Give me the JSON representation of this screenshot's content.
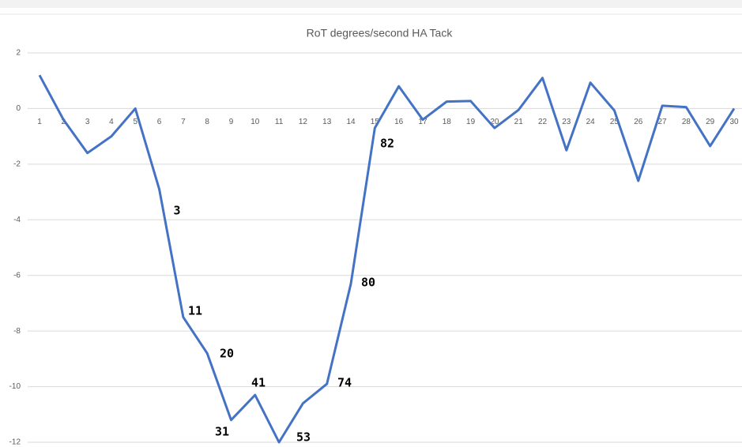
{
  "chart_data": {
    "type": "line",
    "title": "RoT degrees/second HA  Tack",
    "categories": [
      1,
      2,
      3,
      4,
      5,
      6,
      7,
      8,
      9,
      10,
      11,
      12,
      13,
      14,
      15,
      16,
      17,
      18,
      19,
      20,
      21,
      22,
      23,
      24,
      25,
      26,
      27,
      28,
      29,
      30
    ],
    "series": [
      {
        "name": "RoT",
        "color": "#4472c4",
        "values": [
          1.2,
          -0.4,
          -1.6,
          -1.0,
          0.0,
          -2.9,
          -7.5,
          -8.8,
          -11.2,
          -10.3,
          -12.0,
          -10.6,
          -9.9,
          -6.3,
          -0.7,
          0.8,
          -0.4,
          0.25,
          0.27,
          -0.7,
          -0.05,
          1.1,
          -1.5,
          0.93,
          -0.07,
          -2.6,
          0.1,
          0.05,
          -1.35,
          0.0
        ]
      }
    ],
    "ylim": [
      -12,
      2
    ],
    "yticks": [
      -12,
      -10,
      -8,
      -6,
      -4,
      -2,
      0,
      2
    ],
    "grid": true,
    "annotations": [
      "3",
      "11",
      "20",
      "31",
      "41",
      "53",
      "74",
      "80",
      "82"
    ]
  }
}
